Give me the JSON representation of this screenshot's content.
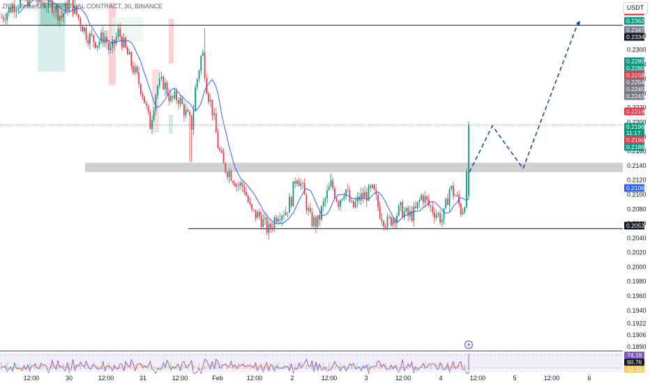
{
  "header": {
    "symbol_title": "ZRX / TetherUS PERPETUAL CONTRACT, 30, BINANCE",
    "currency": "USDT"
  },
  "chart_data": {
    "type": "candlestick",
    "price_axis": {
      "ticks": [
        "0.2320",
        "0.2300",
        "0.2280",
        "0.2260",
        "0.2240",
        "0.2220",
        "0.2200",
        "0.2180",
        "0.2160",
        "0.2140",
        "0.2120",
        "0.2100",
        "0.2080",
        "0.2060",
        "0.2040",
        "0.2020",
        "0.2000",
        "0.1980",
        "0.1960",
        "0.1940",
        "0.1922",
        "0.1906",
        "0.1890"
      ],
      "range": [
        0.1885,
        0.2365
      ]
    },
    "time_axis": {
      "labels": [
        "12:00",
        "30",
        "12:00",
        "31",
        "12:00",
        "Feb",
        "12:00",
        "2",
        "12:00",
        "3",
        "12:00",
        "4",
        "12:00",
        "5",
        "12:00",
        "6"
      ]
    },
    "price_labels": [
      {
        "value": "0.2362",
        "color": "#089981"
      },
      {
        "value": "0.2347",
        "color": "#787b86"
      },
      {
        "value": "0.2334",
        "color": "#131722"
      },
      {
        "value": "0.2280",
        "color": "#089981"
      },
      {
        "value": "0.2280",
        "color": "#089981"
      },
      {
        "value": "0.2258",
        "color": "#f23645"
      },
      {
        "value": "0.2254",
        "color": "#787b86"
      },
      {
        "value": "0.2245",
        "color": "#787b86"
      },
      {
        "value": "0.2243",
        "color": "#787b86"
      },
      {
        "value": "0.2219",
        "color": "#f23645"
      },
      {
        "value": "0.2196",
        "color": "#089981"
      },
      {
        "value": "11:17",
        "color": "#089981"
      },
      {
        "value": "0.2190",
        "color": "#f23645"
      },
      {
        "value": "0.2186",
        "color": "#089981"
      },
      {
        "value": "0.2106",
        "color": "#2962ff"
      },
      {
        "value": "0.2053",
        "color": "#131722"
      }
    ],
    "levels": {
      "resistance": 0.2334,
      "support": 0.2053,
      "zone_low": 0.2131,
      "zone_high": 0.2144,
      "last_price": 0.2196
    },
    "projection": [
      0.2131,
      0.2195,
      0.2136,
      0.2338
    ],
    "oscillator": {
      "labels": [
        {
          "value": "74.19",
          "color": "#7e57c2"
        },
        {
          "value": "60.76",
          "color": "#131722"
        },
        {
          "value": "53.33",
          "color": "#f7c948"
        }
      ]
    }
  },
  "colors": {
    "up": "#089981",
    "down": "#f23645",
    "ma": "#2962ff",
    "projection": "#1848a8",
    "zone": "#c8c8c8"
  }
}
